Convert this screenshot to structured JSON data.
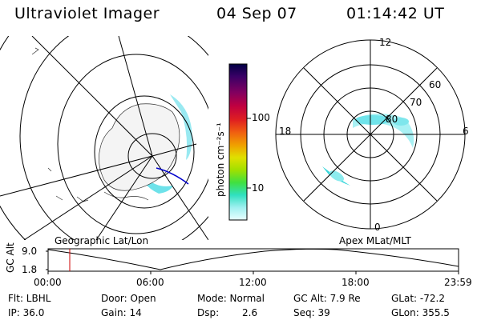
{
  "header": {
    "title": "Ultraviolet Imager",
    "date": "04 Sep 07",
    "time": "01:14:42 UT"
  },
  "left_map": {
    "label": "Geographic Lat/Lon"
  },
  "right_map": {
    "label": "Apex MLat/MLT",
    "mlt_labels": [
      "12",
      "6",
      "0",
      "18"
    ],
    "lat_labels": [
      "60",
      "70",
      "80"
    ]
  },
  "colorbar": {
    "label": "photon cm⁻²s⁻¹",
    "ticks": [
      "100",
      "10"
    ],
    "colors": [
      "#000044",
      "#3a0066",
      "#800060",
      "#c00040",
      "#e02020",
      "#f06010",
      "#f0a000",
      "#e0e000",
      "#a0e000",
      "#40e040",
      "#30e0c0",
      "#a0f0f0",
      "#e8ffff"
    ]
  },
  "timeline": {
    "ylabel": "GC Alt",
    "ymax": "9.0",
    "ymin": "1.8",
    "xticks": [
      "00:00",
      "06:00",
      "12:00",
      "18:00",
      "23:59"
    ],
    "marker_color": "#cc0000"
  },
  "info": {
    "flt": "Flt: LBHL",
    "ip": "IP: 36.0",
    "door": "Door: Open",
    "gain": "Gain: 14",
    "mode": "Mode: Normal",
    "dsp_label": "Dsp:",
    "dsp_value": "2.6",
    "gcalt": "GC Alt: 7.9 Re",
    "seq": "Seq: 39",
    "glat": "GLat: -72.2",
    "glon": "GLon: 355.5"
  }
}
